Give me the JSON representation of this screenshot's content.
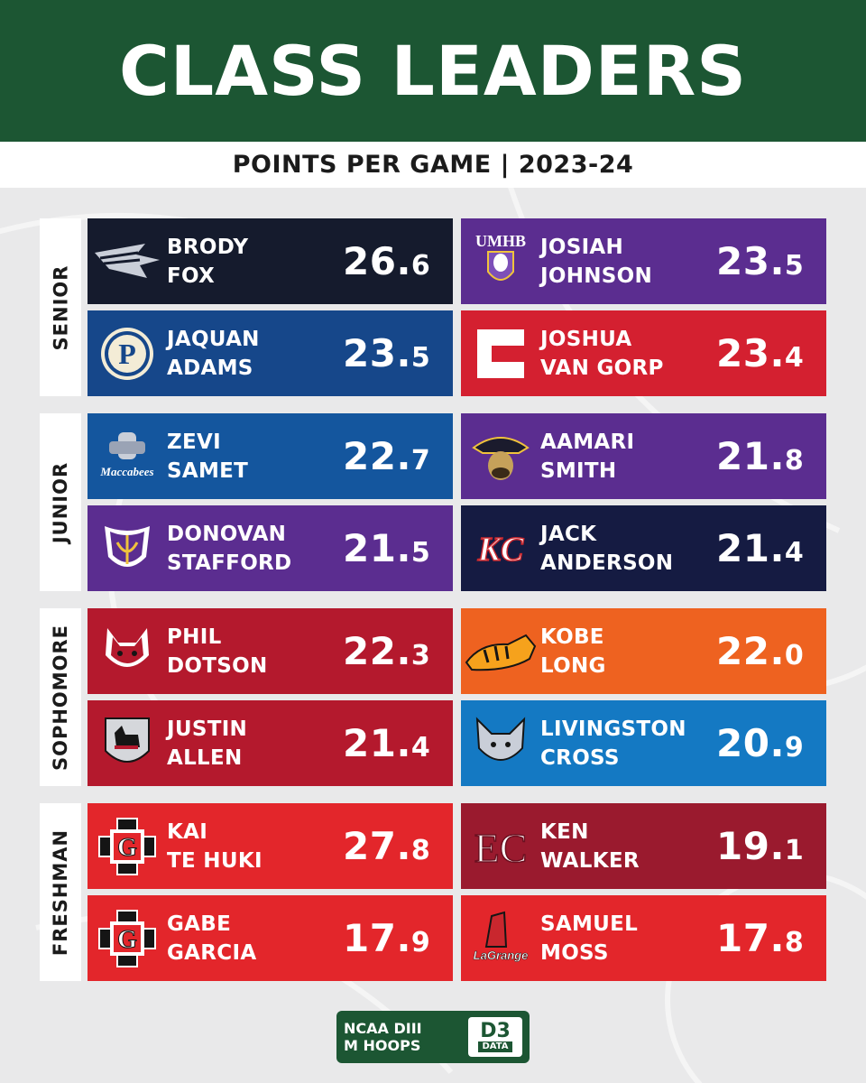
{
  "header": {
    "title": "CLASS LEADERS",
    "subtitle": "POINTS PER GAME  |  2023-24"
  },
  "sections": [
    {
      "label": "SENIOR",
      "players": [
        {
          "first": "BRODY",
          "last": "FOX",
          "ppg_whole": "26.",
          "ppg_dec": "6",
          "color": "#151b2d",
          "logo": "blue-devil-icon"
        },
        {
          "first": "JOSIAH",
          "last": "JOHNSON",
          "ppg_whole": "23.",
          "ppg_dec": "5",
          "color": "#5b2d90",
          "logo": "umhb-crusader-icon",
          "logo_text": "UMHB"
        },
        {
          "first": "JAQUAN",
          "last": "ADAMS",
          "ppg_whole": "23.",
          "ppg_dec": "5",
          "color": "#16478a",
          "logo": "letter-p-icon",
          "logo_text": "P"
        },
        {
          "first": "JOSHUA",
          "last": "VAN GORP",
          "ppg_whole": "23.",
          "ppg_dec": "4",
          "color": "#d42030",
          "logo": "letter-c-icon",
          "logo_text": "C"
        }
      ]
    },
    {
      "label": "JUNIOR",
      "players": [
        {
          "first": "ZEVI",
          "last": "SAMET",
          "ppg_whole": "22.",
          "ppg_dec": "7",
          "color": "#14569e",
          "logo": "maccabees-icon",
          "logo_text": "Maccabees"
        },
        {
          "first": "AAMARI",
          "last": "SMITH",
          "ppg_whole": "21.",
          "ppg_dec": "8",
          "color": "#5b2d90",
          "logo": "pioneer-head-icon"
        },
        {
          "first": "DONOVAN",
          "last": "STAFFORD",
          "ppg_whole": "21.",
          "ppg_dec": "5",
          "color": "#5b2d90",
          "logo": "shield-crest-icon"
        },
        {
          "first": "JACK",
          "last": "ANDERSON",
          "ppg_whole": "21.",
          "ppg_dec": "4",
          "color": "#151b42",
          "logo": "kc-letters-icon",
          "logo_text": "KC"
        }
      ]
    },
    {
      "label": "SOPHOMORE",
      "players": [
        {
          "first": "PHIL",
          "last": "DOTSON",
          "ppg_whole": "22.",
          "ppg_dec": "3",
          "color": "#b4192d",
          "logo": "bobcat-head-icon"
        },
        {
          "first": "KOBE",
          "last": "LONG",
          "ppg_whole": "22.",
          "ppg_dec": "0",
          "color": "#ee6220",
          "logo": "tiger-icon"
        },
        {
          "first": "JUSTIN",
          "last": "ALLEN",
          "ppg_whole": "21.",
          "ppg_dec": "4",
          "color": "#b4192d",
          "logo": "scottie-dog-icon"
        },
        {
          "first": "LIVINGSTON",
          "last": "CROSS",
          "ppg_whole": "20.",
          "ppg_dec": "9",
          "color": "#1479c3",
          "logo": "wolf-head-icon"
        }
      ]
    },
    {
      "label": "FRESHMAN",
      "players": [
        {
          "first": "KAI",
          "last": "TE HUKI",
          "ppg_whole": "27.",
          "ppg_dec": "8",
          "color": "#e3262b",
          "logo": "grinnell-g-icon",
          "logo_text": "G"
        },
        {
          "first": "KEN",
          "last": "WALKER",
          "ppg_whole": "19.",
          "ppg_dec": "1",
          "color": "#9a1a2e",
          "logo": "ec-letters-icon",
          "logo_text": "EC"
        },
        {
          "first": "GABE",
          "last": "GARCIA",
          "ppg_whole": "17.",
          "ppg_dec": "9",
          "color": "#e3262b",
          "logo": "grinnell-g-icon",
          "logo_text": "G"
        },
        {
          "first": "SAMUEL",
          "last": "MOSS",
          "ppg_whole": "17.",
          "ppg_dec": "8",
          "color": "#e3262b",
          "logo": "lagrange-icon",
          "logo_text": "LaGrange"
        }
      ]
    }
  ],
  "footer": {
    "line1": "NCAA DIII",
    "line2": "M HOOPS",
    "badge_top": "D3",
    "badge_bottom": "DATA"
  }
}
